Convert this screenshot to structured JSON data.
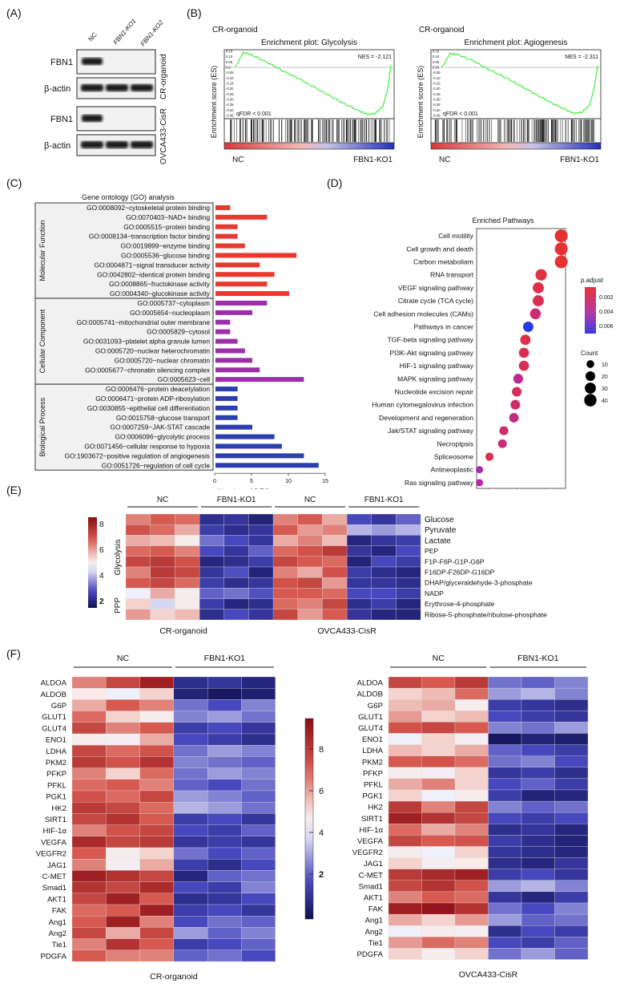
{
  "panel_labels": {
    "a": "(A)",
    "b": "(B)",
    "c": "(C)",
    "d": "(D)",
    "e": "(E)",
    "f": "(F)"
  },
  "panel_a": {
    "lanes": [
      "NC",
      "FBN1-KO1",
      "FBN1-KO2"
    ],
    "rows": [
      "FBN1",
      "β-actin",
      "FBN1",
      "β-actin"
    ],
    "group1": "CR-organoid",
    "group2": "OVCA433-CisR"
  },
  "panel_b": {
    "ylabel": "Enrichment score (ES)",
    "xleft": "NC",
    "xright": "FBN1-KO1",
    "plots": [
      {
        "group": "CR-organoid",
        "title": "Enrichment plot: Glycolysis",
        "nes": "NES = -2.121",
        "fdr": "qFDR < 0.001",
        "ticks": [
          "0.15",
          "0.10",
          "0.05",
          "0.0",
          "-0.05",
          "-0.10",
          "-0.15",
          "-0.20",
          "-0.25",
          "-0.30",
          "-0.35",
          "-0.40",
          "-0.45"
        ]
      },
      {
        "group": "CR-organoid",
        "title": "Enrichment plot: Agiogenesis",
        "nes": "NES = -2.311",
        "fdr": "qFDR < 0.001",
        "ticks": [
          "0.15",
          "0.10",
          "0.05",
          "0.00",
          "-0.05",
          "-0.10",
          "-0.15",
          "-0.20",
          "-0.25",
          "-0.30",
          "-0.35",
          "-0.40",
          "-0.45"
        ]
      }
    ]
  },
  "panel_c": {
    "title": "Gene ontology (GO) analysis",
    "xlabel": "Number of DEGs",
    "xticks": [
      "0",
      "5",
      "10",
      "15"
    ],
    "groups": [
      "Molecular Function",
      "Cellular Component",
      "Biological Process"
    ],
    "colors": [
      "#e8392f",
      "#9b2fa8",
      "#2c3fb0"
    ]
  },
  "panel_d": {
    "title": "Enriched Pathways",
    "xlabel": "GeneRatio",
    "xticks": [
      "0.02",
      "0.04",
      "0.06"
    ],
    "padj_title": "p.adjust",
    "padj_ticks": [
      "0.002",
      "0.004",
      "0.006"
    ],
    "count_title": "Count",
    "count_ticks": [
      "10",
      "20",
      "30",
      "40"
    ]
  },
  "panel_e": {
    "groups": [
      "NC",
      "FBN1-KO1",
      "NC",
      "FBN1-KO1"
    ],
    "sublabels": [
      "CR-organoid",
      "OVCA433-CisR"
    ],
    "side": [
      "Glycolysis",
      "PPP"
    ],
    "rows": [
      "Glucose",
      "Pyruvate",
      "Lactate",
      "PEP",
      "F1P-F6P-G1P-G6P",
      "F16DP-F26DP-G16DP",
      "DHAP/glyceraldehyde-3-phosphate",
      "NADP",
      "Erythrose-4-phosphate",
      "Ribose-5-phosphate/ribulose-phosphate"
    ],
    "scale": [
      "8",
      "6",
      "4",
      "2"
    ],
    "left": [
      [
        6.5,
        7.0,
        6.8,
        1.8,
        2.0,
        1.5
      ],
      [
        7.2,
        6.8,
        6.0,
        2.2,
        1.8,
        2.0
      ],
      [
        6.0,
        5.8,
        5.0,
        3.0,
        2.5,
        2.0
      ],
      [
        6.8,
        7.0,
        6.5,
        2.5,
        2.0,
        2.8
      ],
      [
        7.5,
        7.8,
        7.2,
        1.6,
        1.8,
        2.2
      ],
      [
        6.5,
        7.8,
        7.5,
        2.0,
        2.6,
        1.5
      ],
      [
        7.0,
        7.5,
        6.8,
        2.2,
        1.8,
        2.0
      ],
      [
        4.5,
        6.0,
        5.0,
        2.8,
        3.0,
        2.6
      ],
      [
        5.5,
        4.2,
        5.0,
        2.2,
        1.6,
        1.8
      ],
      [
        6.2,
        5.5,
        5.8,
        1.8,
        2.5,
        2.0
      ]
    ],
    "right": [
      [
        6.5,
        7.0,
        6.0,
        2.5,
        2.0,
        2.8
      ],
      [
        7.0,
        6.2,
        6.5,
        3.8,
        3.5,
        3.8
      ],
      [
        6.0,
        6.5,
        5.8,
        1.6,
        2.0,
        2.2
      ],
      [
        6.8,
        7.2,
        7.8,
        2.0,
        1.6,
        2.5
      ],
      [
        7.5,
        7.0,
        6.8,
        1.5,
        2.5,
        2.2
      ],
      [
        6.5,
        6.0,
        7.2,
        2.2,
        1.8,
        1.6
      ],
      [
        7.2,
        7.5,
        6.2,
        2.0,
        2.0,
        1.8
      ],
      [
        7.0,
        7.0,
        6.8,
        2.5,
        2.5,
        2.2
      ],
      [
        6.8,
        6.5,
        7.5,
        1.8,
        2.2,
        1.6
      ],
      [
        7.5,
        6.2,
        7.0,
        2.0,
        1.6,
        1.5
      ]
    ]
  },
  "panel_f": {
    "left_title": "CR-organoid",
    "right_title": "OVCA433-CisR",
    "groups": [
      "NC",
      "FBN1-KO1"
    ],
    "scale": [
      "8",
      "6",
      "4",
      "2"
    ],
    "left_rows": [
      "ALDOA",
      "ALDOB",
      "G6P",
      "GLUT1",
      "GLUT4",
      "ENO1",
      "LDHA",
      "PKM2",
      "PFKP",
      "PFKL",
      "PGK1",
      "HK2",
      "SIRT1",
      "HIF-1α",
      "VEGFA",
      "VEGFR2",
      "JAG1",
      "C-MET",
      "Smad1",
      "AKT1",
      "FAK",
      "Ang1",
      "Ang2",
      "Tie1",
      "PDGFA"
    ],
    "right_rows": [
      "ALDOA",
      "ALDOB",
      "G6P",
      "GLUT1",
      "GLUT4",
      "ENO1",
      "LDHA",
      "PKM2",
      "PFKP",
      "PFKL",
      "PGK1",
      "HK2",
      "SIRT1",
      "HIF-1α",
      "VEGFA",
      "VEGFR2",
      "JAG1",
      "C-MET",
      "Smad1",
      "AKT1",
      "FAK",
      "Ang1",
      "Ang2",
      "Tie1",
      "PDGFA"
    ],
    "left": [
      [
        6.5,
        7.5,
        8.5,
        1.8,
        2.0,
        1.6
      ],
      [
        5.2,
        4.5,
        5.5,
        1.5,
        1.2,
        1.4
      ],
      [
        6.0,
        7.0,
        6.5,
        3.0,
        2.5,
        3.2
      ],
      [
        6.8,
        5.5,
        5.0,
        3.2,
        3.5,
        3.0
      ],
      [
        7.5,
        6.5,
        7.0,
        2.2,
        2.5,
        2.0
      ],
      [
        5.0,
        4.8,
        6.0,
        2.5,
        2.2,
        1.8
      ],
      [
        7.5,
        6.8,
        7.2,
        3.0,
        3.5,
        3.2
      ],
      [
        7.8,
        7.2,
        8.0,
        3.2,
        3.0,
        2.8
      ],
      [
        6.5,
        5.5,
        6.8,
        3.0,
        3.5,
        3.2
      ],
      [
        6.8,
        7.0,
        6.5,
        2.8,
        2.5,
        3.0
      ],
      [
        7.2,
        6.8,
        7.5,
        3.5,
        3.2,
        2.8
      ],
      [
        7.8,
        7.5,
        6.8,
        3.8,
        3.5,
        3.0
      ],
      [
        7.5,
        8.0,
        7.0,
        2.2,
        2.5,
        2.0
      ],
      [
        6.5,
        7.2,
        7.5,
        2.5,
        2.2,
        2.8
      ],
      [
        8.2,
        7.5,
        7.8,
        2.0,
        2.2,
        2.0
      ],
      [
        7.0,
        5.0,
        5.5,
        3.0,
        2.5,
        2.8
      ],
      [
        6.5,
        4.8,
        6.0,
        2.2,
        1.8,
        2.5
      ],
      [
        8.5,
        8.0,
        7.5,
        1.6,
        2.8,
        3.0
      ],
      [
        8.0,
        7.5,
        8.2,
        2.5,
        2.2,
        3.2
      ],
      [
        7.5,
        8.5,
        7.0,
        1.8,
        2.0,
        2.5
      ],
      [
        6.8,
        7.0,
        8.5,
        2.2,
        2.5,
        2.0
      ],
      [
        7.0,
        8.5,
        6.5,
        2.5,
        3.0,
        2.8
      ],
      [
        7.5,
        6.0,
        7.5,
        3.5,
        2.8,
        3.2
      ],
      [
        6.5,
        8.0,
        7.0,
        2.2,
        2.5,
        2.8
      ],
      [
        7.0,
        6.5,
        6.5,
        2.8,
        3.0,
        2.5
      ]
    ],
    "right": [
      [
        7.5,
        7.0,
        7.8,
        3.0,
        2.8,
        3.2
      ],
      [
        5.5,
        5.8,
        6.8,
        3.5,
        3.8,
        3.2
      ],
      [
        5.8,
        6.0,
        5.0,
        2.2,
        2.0,
        1.8
      ],
      [
        6.2,
        5.5,
        5.8,
        2.5,
        2.2,
        2.0
      ],
      [
        7.2,
        7.5,
        7.0,
        3.2,
        3.0,
        3.5
      ],
      [
        4.5,
        5.5,
        4.8,
        1.2,
        1.5,
        1.4
      ],
      [
        5.8,
        5.5,
        6.0,
        2.8,
        2.5,
        2.2
      ],
      [
        7.0,
        7.2,
        6.8,
        3.0,
        3.2,
        2.5
      ],
      [
        5.0,
        4.8,
        5.5,
        2.0,
        2.2,
        1.8
      ],
      [
        6.0,
        6.5,
        5.5,
        2.5,
        2.8,
        2.2
      ],
      [
        5.5,
        4.5,
        5.0,
        2.2,
        1.5,
        1.6
      ],
      [
        7.8,
        6.5,
        7.5,
        3.2,
        2.8,
        3.0
      ],
      [
        8.5,
        8.0,
        7.5,
        2.5,
        2.2,
        2.5
      ],
      [
        6.8,
        6.0,
        6.5,
        1.8,
        2.0,
        1.6
      ],
      [
        7.5,
        7.0,
        7.2,
        2.2,
        1.8,
        1.5
      ],
      [
        5.0,
        4.5,
        5.5,
        2.0,
        1.8,
        1.6
      ],
      [
        5.5,
        4.8,
        5.2,
        1.8,
        1.6,
        2.0
      ],
      [
        7.8,
        8.2,
        8.5,
        2.2,
        2.5,
        2.0
      ],
      [
        7.5,
        8.0,
        7.2,
        3.5,
        3.8,
        3.2
      ],
      [
        6.5,
        7.0,
        6.8,
        2.0,
        1.6,
        2.2
      ],
      [
        8.5,
        8.8,
        8.0,
        3.0,
        2.5,
        3.2
      ],
      [
        6.0,
        5.5,
        6.2,
        3.5,
        2.8,
        3.0
      ],
      [
        4.5,
        5.0,
        4.8,
        1.8,
        2.5,
        2.2
      ],
      [
        6.2,
        6.8,
        6.5,
        2.5,
        2.2,
        2.8
      ],
      [
        5.5,
        5.0,
        5.5,
        3.0,
        3.5,
        2.8
      ]
    ]
  },
  "chart_data": [
    {
      "type": "line",
      "title": "Enrichment plot: Glycolysis",
      "ylabel": "Enrichment score (ES)",
      "annotation": [
        "NES = -2.121",
        "qFDR < 0.001"
      ],
      "x": [
        0,
        0.05,
        0.1,
        0.2,
        0.3,
        0.4,
        0.5,
        0.6,
        0.7,
        0.8,
        0.85,
        0.9,
        0.95,
        0.98,
        1.0
      ],
      "y": [
        0.0,
        0.14,
        0.12,
        0.05,
        -0.03,
        -0.1,
        -0.18,
        -0.26,
        -0.34,
        -0.41,
        -0.44,
        -0.43,
        -0.36,
        -0.2,
        0.02
      ],
      "ylim": [
        -0.45,
        0.15
      ]
    },
    {
      "type": "line",
      "title": "Enrichment plot: Agiogenesis",
      "ylabel": "Enrichment score (ES)",
      "annotation": [
        "NES = -2.311",
        "qFDR < 0.001"
      ],
      "x": [
        0,
        0.05,
        0.1,
        0.2,
        0.3,
        0.4,
        0.5,
        0.6,
        0.7,
        0.8,
        0.85,
        0.9,
        0.95,
        0.98,
        1.0
      ],
      "y": [
        0.0,
        0.13,
        0.12,
        0.06,
        -0.02,
        -0.09,
        -0.17,
        -0.25,
        -0.33,
        -0.4,
        -0.43,
        -0.42,
        -0.35,
        -0.18,
        0.02
      ],
      "ylim": [
        -0.45,
        0.15
      ]
    },
    {
      "type": "bar",
      "title": "Gene ontology (GO) analysis",
      "xlabel": "Number of DEGs",
      "xlim": [
        0,
        15
      ],
      "categories": [
        "GO:0008092~cytoskeletal protein binding",
        "GO:0070403~NAD+ binding",
        "GO:0005515~protein binding",
        "GO:0008134~transcription factor binding",
        "GO:0019899~enzyme binding",
        "GO:0005536~glucose binding",
        "GO:0004871~signal transducer activity",
        "GO:0042802~identical protein binding",
        "GO:0008865~fructokinase activity",
        "GO:0004340~glucokinase activity",
        "GO:0005737~cytoplasm",
        "GO:0005654~nucleoplasm",
        "GO:0005741~mitochondrial outer membrane",
        "GO:0005829~cytosol",
        "GO:0031093~platelet alpha granule lumen",
        "GO:0005720~nuclear heterochromatin",
        "GO:0005720~nuclear chromatin",
        "GO:0005677~chronatin silencing complex",
        "GO:0005623~cell",
        "GO:0006476~protein deacetylation",
        "GO:0006471~protein ADP-ribosylation",
        "GO:0030855~epithelial cell differentiation",
        "GO:0015758~glucose transport",
        "GO:0007259~JAK-STAT cascade",
        "GO:0006096~glycolytic process",
        "GO:0071456~cellular response to hypoxia",
        "GO:1903672~positive regulation of angiogenesis",
        "GO:0051726~regulation of cell cycle"
      ],
      "values": [
        2,
        7,
        3,
        3,
        4,
        11,
        6,
        8,
        7,
        10,
        7,
        5,
        2,
        2,
        3,
        4,
        5,
        6,
        12,
        3,
        3,
        3,
        3,
        5,
        8,
        9,
        12,
        14
      ],
      "group": [
        0,
        0,
        0,
        0,
        0,
        0,
        0,
        0,
        0,
        0,
        1,
        1,
        1,
        1,
        1,
        1,
        1,
        1,
        1,
        2,
        2,
        2,
        2,
        2,
        2,
        2,
        2,
        2
      ]
    },
    {
      "type": "scatter",
      "title": "Enriched Pathways",
      "xlabel": "GeneRatio",
      "xlim": [
        0.012,
        0.074
      ],
      "categories": [
        "Cell motility",
        "Cell growth and death",
        "Carbon metaboliam",
        "RNA transport",
        "VEGF signaling pathway",
        "Citrate cycle (TCA cycle)",
        "Cell adhesion molecules (CAMs)",
        "Pathways in cancer",
        "TGF-beta signaling pathway",
        "PI3K-Akt signaling pathway",
        "HIF-1 signaling pathway",
        "MAPK signaling pathway",
        "Nucleotide excision repair",
        "Human cytomegalovirus infection",
        "Development and regeneration",
        "Jak/STAT signaling pathway",
        "Necroptpsis",
        "Spliceosome",
        "Antineoplastic",
        "Ras signaling pathway"
      ],
      "x": [
        0.071,
        0.071,
        0.071,
        0.057,
        0.055,
        0.055,
        0.053,
        0.048,
        0.046,
        0.045,
        0.045,
        0.041,
        0.04,
        0.039,
        0.038,
        0.031,
        0.03,
        0.021,
        0.014,
        0.014
      ],
      "count": [
        45,
        45,
        45,
        32,
        30,
        30,
        28,
        25,
        24,
        23,
        23,
        21,
        20,
        20,
        19,
        16,
        15,
        12,
        8,
        8
      ],
      "padj": [
        0.0003,
        0.0003,
        0.0003,
        0.0008,
        0.001,
        0.0012,
        0.002,
        0.007,
        0.001,
        0.0012,
        0.0011,
        0.003,
        0.0015,
        0.0018,
        0.0025,
        0.002,
        0.0022,
        0.0012,
        0.004,
        0.0035
      ]
    }
  ]
}
